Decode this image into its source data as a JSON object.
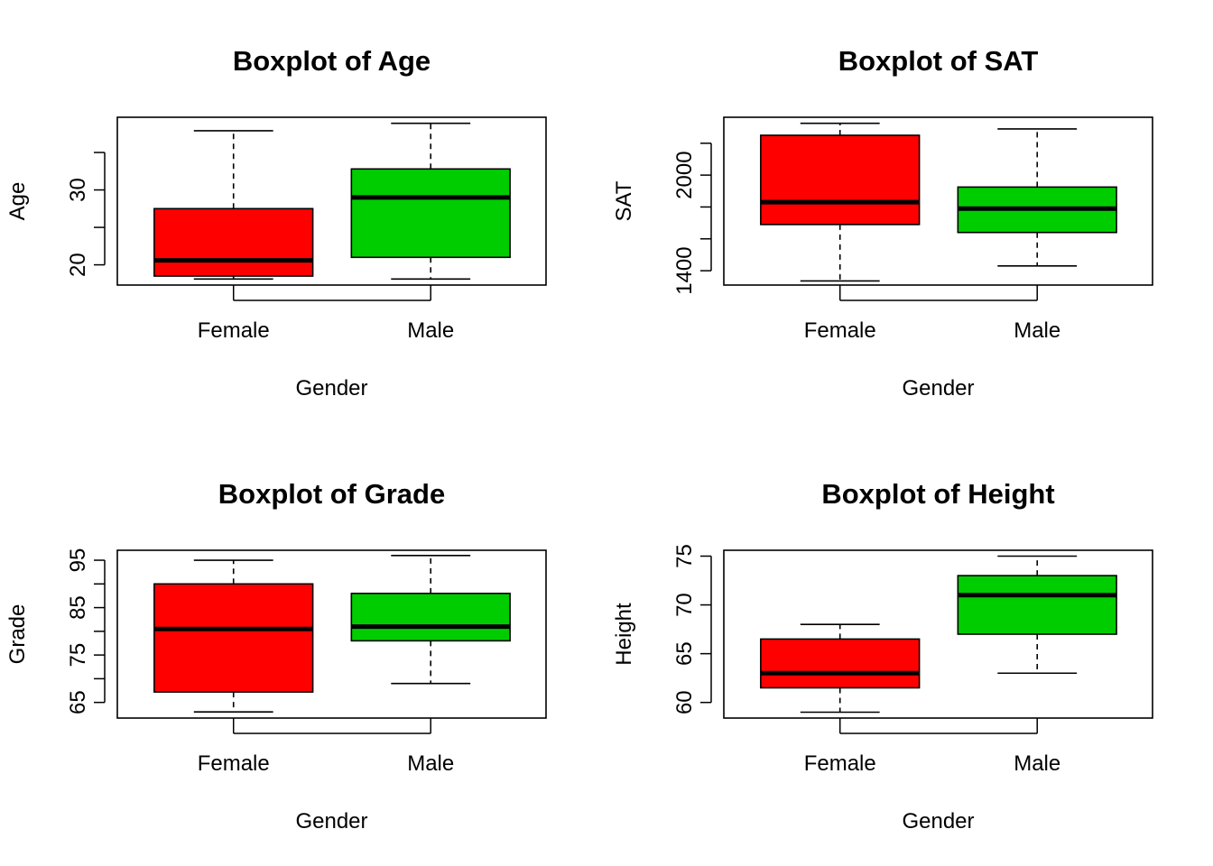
{
  "chart_data": [
    {
      "type": "boxplot",
      "title": "Boxplot of Age",
      "xlabel": "Gender",
      "ylabel": "Age",
      "categories": [
        "Female",
        "Male"
      ],
      "colors": [
        "#FF0000",
        "#00CD00"
      ],
      "ylim": [
        17.3,
        39.7
      ],
      "yticks": [
        20,
        25,
        30,
        35
      ],
      "ytick_labels": [
        "20",
        "",
        "30",
        ""
      ],
      "boxes": [
        {
          "category": "Female",
          "min": 18.1,
          "q1": 18.5,
          "median": 20.6,
          "q3": 27.5,
          "max": 37.9
        },
        {
          "category": "Male",
          "min": 18.1,
          "q1": 21.0,
          "median": 29.0,
          "q3": 32.8,
          "max": 38.9
        }
      ]
    },
    {
      "type": "boxplot",
      "title": "Boxplot of SAT",
      "xlabel": "Gender",
      "ylabel": "SAT",
      "categories": [
        "Female",
        "Male"
      ],
      "colors": [
        "#FF0000",
        "#00CD00"
      ],
      "ylim": [
        1310,
        2363
      ],
      "yticks": [
        1400,
        1600,
        1800,
        2000,
        2200
      ],
      "ytick_labels": [
        "1400",
        "",
        "",
        "2000",
        ""
      ],
      "boxes": [
        {
          "category": "Female",
          "min": 1336,
          "q1": 1690,
          "median": 1830,
          "q3": 2250,
          "max": 2325
        },
        {
          "category": "Male",
          "min": 1430,
          "q1": 1640,
          "median": 1790,
          "q3": 1925,
          "max": 2290
        }
      ]
    },
    {
      "type": "boxplot",
      "title": "Boxplot of Grade",
      "xlabel": "Gender",
      "ylabel": "Grade",
      "categories": [
        "Female",
        "Male"
      ],
      "colors": [
        "#FF0000",
        "#00CD00"
      ],
      "ylim": [
        61.7,
        97.1
      ],
      "yticks": [
        65,
        70,
        75,
        80,
        85,
        90,
        95
      ],
      "ytick_labels": [
        "65",
        "",
        "75",
        "",
        "85",
        "",
        "95"
      ],
      "boxes": [
        {
          "category": "Female",
          "min": 63.0,
          "q1": 67.2,
          "median": 80.5,
          "q3": 90.0,
          "max": 95.0
        },
        {
          "category": "Male",
          "min": 69.0,
          "q1": 78.0,
          "median": 81.0,
          "q3": 88.0,
          "max": 96.0
        }
      ]
    },
    {
      "type": "boxplot",
      "title": "Boxplot of Height",
      "xlabel": "Gender",
      "ylabel": "Height",
      "categories": [
        "Female",
        "Male"
      ],
      "colors": [
        "#FF0000",
        "#00CD00"
      ],
      "ylim": [
        58.4,
        75.6
      ],
      "yticks": [
        60,
        65,
        70,
        75
      ],
      "ytick_labels": [
        "60",
        "65",
        "70",
        "75"
      ],
      "boxes": [
        {
          "category": "Female",
          "min": 59.0,
          "q1": 61.5,
          "median": 63.0,
          "q3": 66.5,
          "max": 68.0
        },
        {
          "category": "Male",
          "min": 63.0,
          "q1": 67.0,
          "median": 71.0,
          "q3": 73.0,
          "max": 75.0
        }
      ]
    }
  ]
}
